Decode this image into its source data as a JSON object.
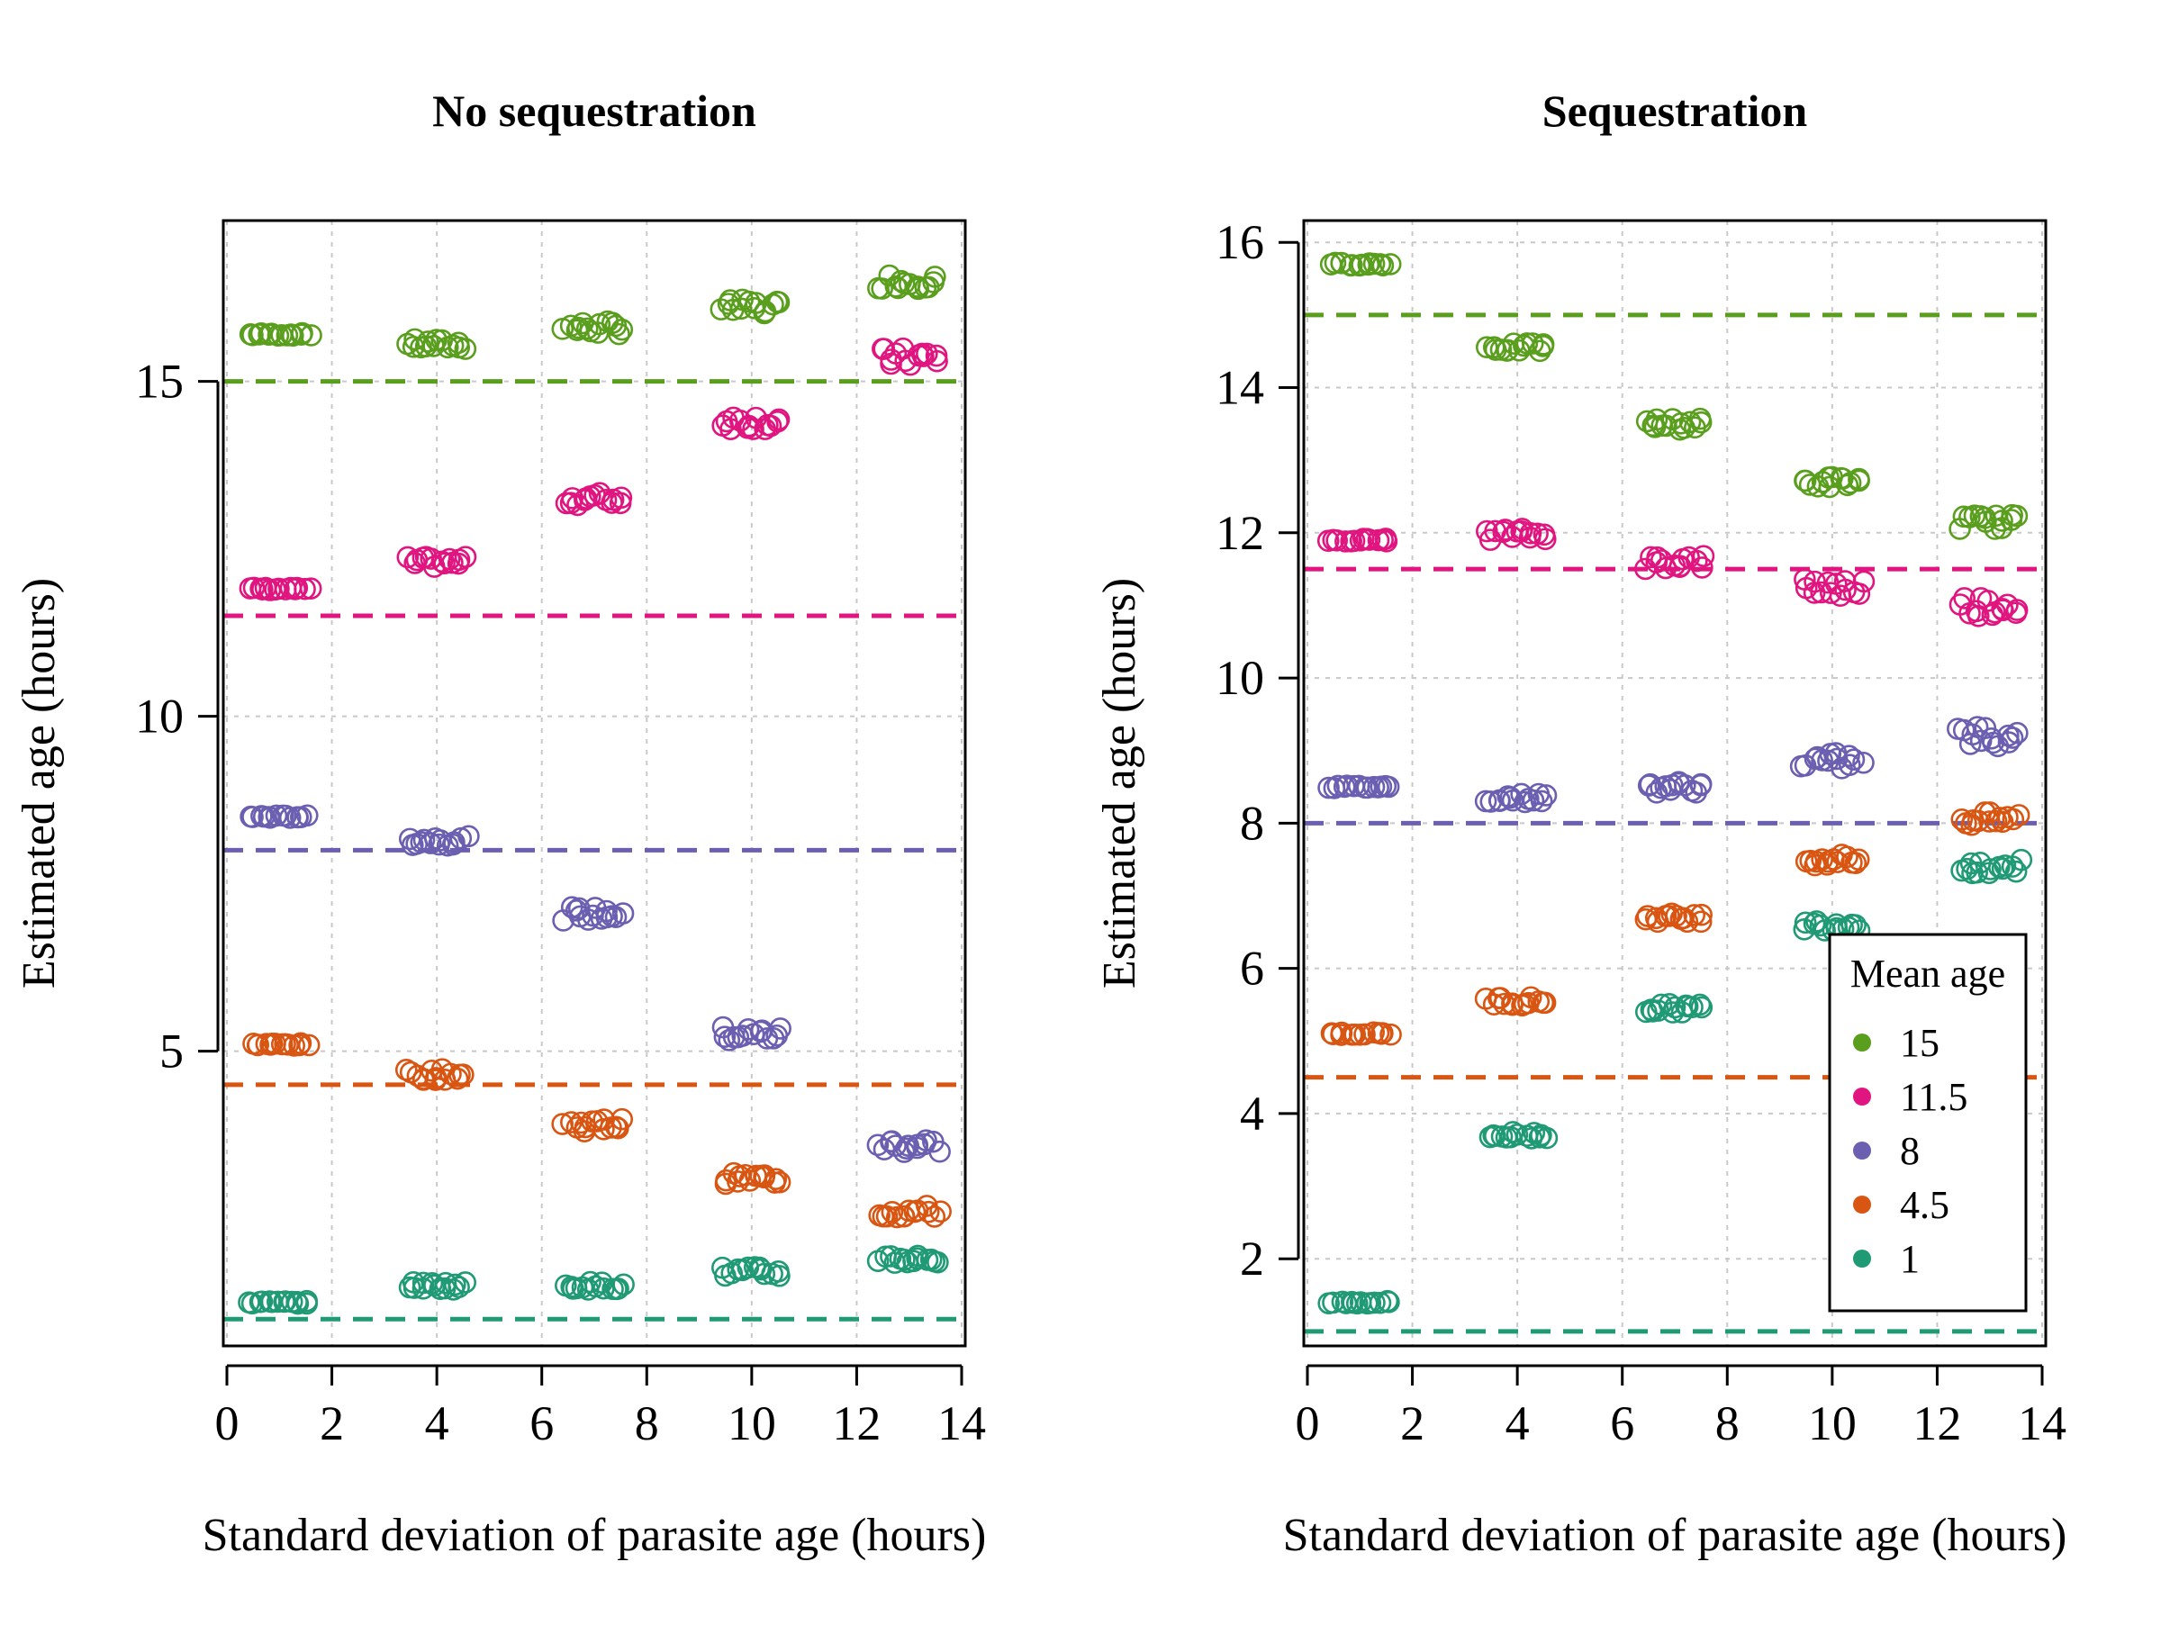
{
  "colors": {
    "15": "#5a9e1e",
    "11.5": "#e0157f",
    "8": "#6a5fb0",
    "4.5": "#d95512",
    "1": "#1f9a74",
    "grid": "#c8c8c8",
    "axis": "#000000"
  },
  "legend": {
    "title": "Mean age",
    "entries": [
      {
        "label": "15",
        "key": "15"
      },
      {
        "label": "11.5",
        "key": "11.5"
      },
      {
        "label": "8",
        "key": "8"
      },
      {
        "label": "4.5",
        "key": "4.5"
      },
      {
        "label": "1",
        "key": "1"
      }
    ]
  },
  "chart_data": [
    {
      "type": "scatter",
      "title": "No sequestration",
      "xlabel": "Standard deviation of parasite age (hours)",
      "ylabel": "Estimated age (hours)",
      "xlim": [
        0,
        14
      ],
      "ylim": [
        0.6,
        17.4
      ],
      "xticks": [
        0,
        2,
        4,
        6,
        8,
        10,
        12,
        14
      ],
      "yticks": [
        5,
        10,
        15
      ],
      "grid": true,
      "marker": "open-circle",
      "reference_lines": [
        {
          "key": "15",
          "y": 15
        },
        {
          "key": "11.5",
          "y": 11.5
        },
        {
          "key": "8",
          "y": 8
        },
        {
          "key": "4.5",
          "y": 4.5
        },
        {
          "key": "1",
          "y": 1
        }
      ],
      "series": [
        {
          "key": "15",
          "points": [
            {
              "x": 1,
              "y": 15.7,
              "spread": 0.02
            },
            {
              "x": 4,
              "y": 15.55,
              "spread": 0.08
            },
            {
              "x": 7,
              "y": 15.8,
              "spread": 0.1
            },
            {
              "x": 10,
              "y": 16.1,
              "spread": 0.12
            },
            {
              "x": 13,
              "y": 16.5,
              "spread": 0.12
            }
          ]
        },
        {
          "key": "11.5",
          "points": [
            {
              "x": 1,
              "y": 11.9,
              "spread": 0.02
            },
            {
              "x": 4,
              "y": 12.3,
              "spread": 0.08
            },
            {
              "x": 7,
              "y": 13.25,
              "spread": 0.1
            },
            {
              "x": 10,
              "y": 14.4,
              "spread": 0.12
            },
            {
              "x": 13,
              "y": 15.35,
              "spread": 0.15
            }
          ]
        },
        {
          "key": "8",
          "points": [
            {
              "x": 1,
              "y": 8.5,
              "spread": 0.02
            },
            {
              "x": 4,
              "y": 8.15,
              "spread": 0.08
            },
            {
              "x": 7,
              "y": 7.05,
              "spread": 0.1
            },
            {
              "x": 10,
              "y": 5.25,
              "spread": 0.12
            },
            {
              "x": 13,
              "y": 3.6,
              "spread": 0.12
            }
          ]
        },
        {
          "key": "4.5",
          "points": [
            {
              "x": 1,
              "y": 5.1,
              "spread": 0.02
            },
            {
              "x": 4,
              "y": 4.65,
              "spread": 0.08
            },
            {
              "x": 7,
              "y": 3.9,
              "spread": 0.1
            },
            {
              "x": 10,
              "y": 3.1,
              "spread": 0.08
            },
            {
              "x": 13,
              "y": 2.6,
              "spread": 0.1
            }
          ]
        },
        {
          "key": "1",
          "points": [
            {
              "x": 1,
              "y": 1.25,
              "spread": 0.02
            },
            {
              "x": 4,
              "y": 1.5,
              "spread": 0.06
            },
            {
              "x": 7,
              "y": 1.5,
              "spread": 0.06
            },
            {
              "x": 10,
              "y": 1.7,
              "spread": 0.08
            },
            {
              "x": 13,
              "y": 1.9,
              "spread": 0.08
            }
          ]
        }
      ]
    },
    {
      "type": "scatter",
      "title": "Sequestration",
      "xlabel": "Standard deviation of parasite age (hours)",
      "ylabel": "Estimated age (hours)",
      "xlim": [
        0,
        14
      ],
      "ylim": [
        0.8,
        16.3
      ],
      "xticks": [
        0,
        2,
        4,
        6,
        8,
        10,
        12,
        14
      ],
      "yticks": [
        2,
        4,
        6,
        8,
        10,
        12,
        14,
        16
      ],
      "grid": true,
      "marker": "open-circle",
      "reference_lines": [
        {
          "key": "15",
          "y": 15
        },
        {
          "key": "11.5",
          "y": 11.5
        },
        {
          "key": "8",
          "y": 8
        },
        {
          "key": "4.5",
          "y": 4.5
        },
        {
          "key": "1",
          "y": 1
        }
      ],
      "series": [
        {
          "key": "15",
          "points": [
            {
              "x": 1,
              "y": 15.7,
              "spread": 0.02
            },
            {
              "x": 4,
              "y": 14.55,
              "spread": 0.06
            },
            {
              "x": 7,
              "y": 13.5,
              "spread": 0.08
            },
            {
              "x": 10,
              "y": 12.7,
              "spread": 0.08
            },
            {
              "x": 13,
              "y": 12.15,
              "spread": 0.1
            }
          ]
        },
        {
          "key": "11.5",
          "points": [
            {
              "x": 1,
              "y": 11.9,
              "spread": 0.02
            },
            {
              "x": 4,
              "y": 11.98,
              "spread": 0.08
            },
            {
              "x": 7,
              "y": 11.6,
              "spread": 0.1
            },
            {
              "x": 10,
              "y": 11.25,
              "spread": 0.15
            },
            {
              "x": 13,
              "y": 11.0,
              "spread": 0.15
            }
          ]
        },
        {
          "key": "8",
          "points": [
            {
              "x": 1,
              "y": 8.5,
              "spread": 0.02
            },
            {
              "x": 4,
              "y": 8.35,
              "spread": 0.06
            },
            {
              "x": 7,
              "y": 8.5,
              "spread": 0.08
            },
            {
              "x": 10,
              "y": 8.85,
              "spread": 0.12
            },
            {
              "x": 13,
              "y": 9.2,
              "spread": 0.15
            }
          ]
        },
        {
          "key": "4.5",
          "points": [
            {
              "x": 1,
              "y": 5.1,
              "spread": 0.02
            },
            {
              "x": 4,
              "y": 5.55,
              "spread": 0.06
            },
            {
              "x": 7,
              "y": 6.7,
              "spread": 0.06
            },
            {
              "x": 10,
              "y": 7.5,
              "spread": 0.08
            },
            {
              "x": 13,
              "y": 8.05,
              "spread": 0.1
            }
          ]
        },
        {
          "key": "1",
          "points": [
            {
              "x": 1,
              "y": 1.4,
              "spread": 0.02
            },
            {
              "x": 4,
              "y": 3.7,
              "spread": 0.06
            },
            {
              "x": 7,
              "y": 5.45,
              "spread": 0.06
            },
            {
              "x": 10,
              "y": 6.6,
              "spread": 0.08
            },
            {
              "x": 13,
              "y": 7.4,
              "spread": 0.1
            }
          ]
        }
      ]
    }
  ]
}
